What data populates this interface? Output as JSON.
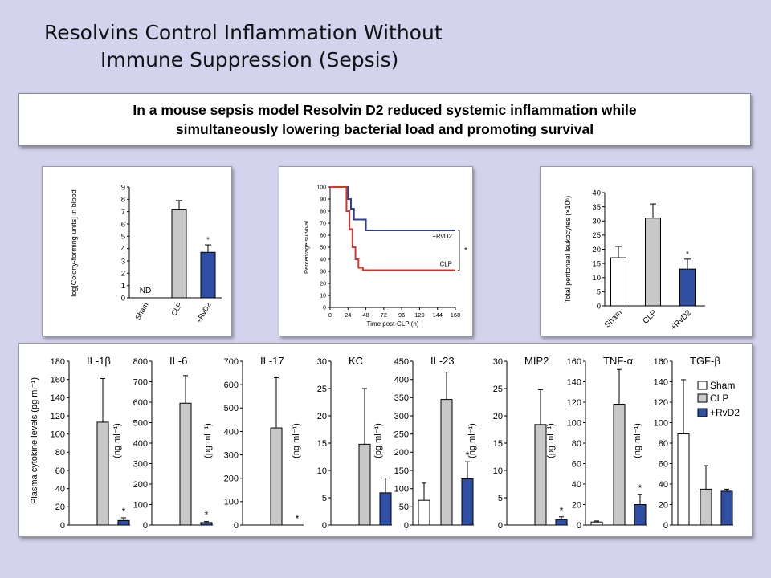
{
  "slide": {
    "title_line1": "Resolvins Control Inflammation Without",
    "title_line2": "Immune Suppression (Sepsis)",
    "banner_line1": "In a mouse sepsis model Resolvin D2 reduced systemic inflammation while",
    "banner_line2": "simultaneously lowering bacterial load and promoting survival"
  },
  "colors": {
    "sham": "#ffffff",
    "clp": "#c8c8c8",
    "rvd2": "#2e4fa3",
    "survival_rvd2": "#2b3f93",
    "survival_clp": "#d9342b"
  },
  "chart_data": [
    {
      "id": "cfu",
      "type": "bar",
      "ylabel": "log[Colony-forming units] in blood",
      "categories": [
        "Sham",
        "CLP",
        "+RvD2"
      ],
      "values": [
        null,
        7.2,
        3.7
      ],
      "errors": [
        null,
        0.7,
        0.6
      ],
      "annotations": [
        "ND",
        "",
        "*"
      ],
      "ylim": [
        0,
        9
      ],
      "yticks": [
        0,
        1,
        2,
        3,
        4,
        5,
        6,
        7,
        8,
        9
      ]
    },
    {
      "id": "survival",
      "type": "line",
      "xlabel": "Time post-CLP (h)",
      "ylabel": "Percentage survival",
      "xlim": [
        0,
        168
      ],
      "ylim": [
        0,
        100
      ],
      "xticks": [
        0,
        24,
        48,
        72,
        96,
        120,
        144,
        168
      ],
      "yticks": [
        0,
        10,
        20,
        30,
        40,
        50,
        60,
        70,
        80,
        90,
        100
      ],
      "series": [
        {
          "name": "+RvD2",
          "points": [
            [
              0,
              100
            ],
            [
              24,
              100
            ],
            [
              24,
              90
            ],
            [
              28,
              90
            ],
            [
              28,
              82
            ],
            [
              32,
              82
            ],
            [
              32,
              73
            ],
            [
              48,
              73
            ],
            [
              48,
              64
            ],
            [
              168,
              64
            ]
          ]
        },
        {
          "name": "CLP",
          "points": [
            [
              0,
              100
            ],
            [
              22,
              100
            ],
            [
              22,
              80
            ],
            [
              26,
              80
            ],
            [
              26,
              65
            ],
            [
              30,
              65
            ],
            [
              30,
              50
            ],
            [
              34,
              50
            ],
            [
              34,
              40
            ],
            [
              38,
              40
            ],
            [
              38,
              33
            ],
            [
              44,
              33
            ],
            [
              44,
              31
            ],
            [
              168,
              31
            ]
          ]
        }
      ],
      "significance": "*"
    },
    {
      "id": "leukocytes",
      "type": "bar",
      "ylabel": "Total peritoneal leukocytes (×10⁶)",
      "categories": [
        "Sham",
        "CLP",
        "+RvD2"
      ],
      "values": [
        17,
        31,
        13
      ],
      "errors": [
        4,
        5,
        3.5
      ],
      "annotations": [
        "",
        "",
        "*"
      ],
      "ylim": [
        0,
        40
      ],
      "yticks": [
        0,
        5,
        10,
        15,
        20,
        25,
        30,
        35,
        40
      ]
    },
    {
      "id": "cytokines",
      "type": "bar",
      "shared_ylabel": "Plasma cytokine levels (pg ml⁻¹)",
      "legend": [
        "Sham",
        "CLP",
        "+RvD2"
      ],
      "panels": [
        {
          "name": "IL-1β",
          "ylabel": "",
          "ylim": [
            0,
            180
          ],
          "yticks": [
            0,
            20,
            40,
            60,
            80,
            100,
            120,
            140,
            160,
            180
          ],
          "values": [
            0,
            113,
            5
          ],
          "errors": [
            0,
            48,
            3
          ],
          "stars": [
            "",
            "",
            "*"
          ]
        },
        {
          "name": "IL-6",
          "ylabel": "(ng ml⁻¹)",
          "ylim": [
            0,
            800
          ],
          "yticks": [
            0,
            100,
            200,
            300,
            400,
            500,
            600,
            700,
            800
          ],
          "values": [
            0,
            595,
            12
          ],
          "errors": [
            0,
            135,
            5
          ],
          "stars": [
            "",
            "",
            "*"
          ]
        },
        {
          "name": "IL-17",
          "ylabel": "(pg ml⁻¹)",
          "ylim": [
            0,
            700
          ],
          "yticks": [
            0,
            100,
            200,
            300,
            400,
            500,
            600,
            700
          ],
          "values": [
            0,
            415,
            0
          ],
          "errors": [
            0,
            215,
            0
          ],
          "stars": [
            "",
            "",
            "*"
          ]
        },
        {
          "name": "KC",
          "ylabel": "(ng ml⁻¹)",
          "ylim": [
            0,
            30
          ],
          "yticks": [
            0,
            5,
            10,
            15,
            20,
            25,
            30
          ],
          "values": [
            0,
            14.8,
            5.9
          ],
          "errors": [
            0,
            10.2,
            2.7
          ],
          "stars": [
            "",
            "",
            ""
          ]
        },
        {
          "name": "IL-23",
          "ylabel": "(pg ml⁻¹)",
          "ylim": [
            0,
            450
          ],
          "yticks": [
            0,
            50,
            100,
            150,
            200,
            250,
            300,
            350,
            400,
            450
          ],
          "values": [
            68,
            345,
            127
          ],
          "errors": [
            47,
            75,
            47
          ],
          "stars": [
            "",
            "",
            "*"
          ]
        },
        {
          "name": "MIP2",
          "ylabel": "(ng ml⁻¹)",
          "ylim": [
            0,
            30
          ],
          "yticks": [
            0,
            5,
            10,
            15,
            20,
            25,
            30
          ],
          "values": [
            0,
            18.4,
            1.0
          ],
          "errors": [
            0,
            6.4,
            0.5
          ],
          "stars": [
            "",
            "",
            "*"
          ]
        },
        {
          "name": "TNF-α",
          "ylabel": "(pg ml⁻¹)",
          "ylim": [
            0,
            160
          ],
          "yticks": [
            0,
            20,
            40,
            60,
            80,
            100,
            120,
            140,
            160
          ],
          "values": [
            3,
            118,
            20
          ],
          "errors": [
            1,
            34,
            10
          ],
          "stars": [
            "",
            "",
            "*"
          ]
        },
        {
          "name": "TGF-β",
          "ylabel": "(ng ml⁻¹)",
          "ylim": [
            0,
            160
          ],
          "yticks": [
            0,
            20,
            40,
            60,
            80,
            100,
            120,
            140,
            160
          ],
          "values": [
            89,
            35,
            33
          ],
          "errors": [
            53,
            23,
            2
          ],
          "stars": [
            "",
            "",
            ""
          ]
        }
      ]
    }
  ]
}
